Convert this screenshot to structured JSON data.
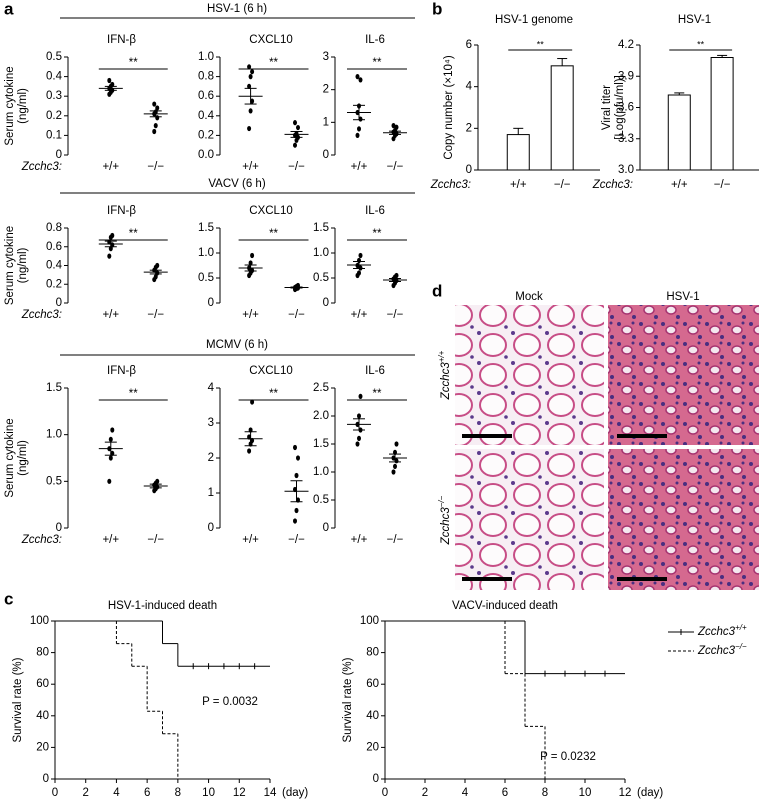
{
  "panel_labels": [
    "a",
    "b",
    "c",
    "d"
  ],
  "groups": [
    {
      "title": "HSV-1 (6 h)"
    },
    {
      "title": "VACV (6 h)"
    },
    {
      "title": "MCMV (6 h)"
    }
  ],
  "images": {
    "columns": [
      "Mock",
      "HSV-1"
    ],
    "rows": [
      {
        "name": "Zcchc3",
        "superscript": "+/+"
      },
      {
        "name": "Zcchc3",
        "superscript": "−/−"
      }
    ]
  },
  "chart_data": [
    {
      "type": "dot",
      "title": "IFN-β",
      "ylabel": [
        "Serum cytokine",
        "(ng/ml)"
      ],
      "xlabel": "Zcchc3:",
      "categories": [
        "+/+",
        "−/−"
      ],
      "annotation": "**",
      "ylim": [
        0,
        0.5
      ],
      "yticks": [
        0,
        0.1,
        0.2,
        0.3,
        0.4,
        0.5
      ],
      "groups": [
        {
          "points": [
            0.31,
            0.32,
            0.33,
            0.34,
            0.35,
            0.36,
            0.38
          ],
          "mean": 0.34,
          "sem": 0.01
        },
        {
          "points": [
            0.12,
            0.15,
            0.19,
            0.21,
            0.22,
            0.24,
            0.26
          ],
          "mean": 0.21,
          "sem": 0.015
        }
      ]
    },
    {
      "type": "dot",
      "title": "CXCL10",
      "categories": [
        "+/+",
        "−/−"
      ],
      "annotation": "**",
      "ylim": [
        0,
        1
      ],
      "yticks": [
        {
          "value": 0,
          "label": "0.0"
        },
        0.2,
        0.4,
        0.6,
        0.8,
        {
          "value": 1,
          "label": "1.0"
        }
      ],
      "groups": [
        {
          "points": [
            0.27,
            0.45,
            0.55,
            0.7,
            0.8,
            0.85,
            0.9
          ],
          "mean": 0.6,
          "sem": 0.08
        },
        {
          "points": [
            0.1,
            0.15,
            0.18,
            0.2,
            0.22,
            0.28,
            0.33
          ],
          "mean": 0.21,
          "sem": 0.03
        }
      ]
    },
    {
      "type": "dot",
      "title": "IL-6",
      "categories": [
        "+/+",
        "−/−"
      ],
      "annotation": "**",
      "ylim": [
        0,
        3
      ],
      "yticks": [
        0,
        1,
        2,
        3
      ],
      "groups": [
        {
          "points": [
            0.6,
            0.8,
            1.1,
            1.3,
            1.5,
            2.3,
            2.4
          ],
          "mean": 1.3,
          "sem": 0.22
        },
        {
          "points": [
            0.5,
            0.6,
            0.65,
            0.7,
            0.75,
            0.85,
            0.9
          ],
          "mean": 0.68,
          "sem": 0.05
        }
      ]
    },
    {
      "type": "dot",
      "title": "IFN-β",
      "ylabel": [
        "Serum cytokine",
        "(ng/ml)"
      ],
      "xlabel": "Zcchc3:",
      "categories": [
        "+/+",
        "−/−"
      ],
      "annotation": "**",
      "ylim": [
        0,
        0.8
      ],
      "yticks": [
        0,
        0.2,
        0.4,
        0.6,
        0.8
      ],
      "groups": [
        {
          "points": [
            0.5,
            0.58,
            0.62,
            0.65,
            0.7,
            0.72
          ],
          "mean": 0.63,
          "sem": 0.03
        },
        {
          "points": [
            0.25,
            0.28,
            0.32,
            0.35,
            0.38,
            0.4
          ],
          "mean": 0.33,
          "sem": 0.02
        }
      ]
    },
    {
      "type": "dot",
      "title": "CXCL10",
      "categories": [
        "+/+",
        "−/−"
      ],
      "annotation": "**",
      "ylim": [
        0,
        1.5
      ],
      "yticks": [
        0,
        0.5,
        {
          "value": 1,
          "label": "1.0"
        },
        1.5
      ],
      "groups": [
        {
          "points": [
            0.55,
            0.6,
            0.65,
            0.7,
            0.8,
            0.95
          ],
          "mean": 0.7,
          "sem": 0.06
        },
        {
          "points": [
            0.27,
            0.29,
            0.3,
            0.31,
            0.33,
            0.35
          ],
          "mean": 0.31,
          "sem": 0.01
        }
      ]
    },
    {
      "type": "dot",
      "title": "IL-6",
      "categories": [
        "+/+",
        "−/−"
      ],
      "annotation": "**",
      "ylim": [
        0,
        1.5
      ],
      "yticks": [
        0,
        0.5,
        {
          "value": 1,
          "label": "1.0"
        },
        1.5
      ],
      "groups": [
        {
          "points": [
            0.55,
            0.6,
            0.7,
            0.75,
            0.85,
            0.95
          ],
          "mean": 0.76,
          "sem": 0.07
        },
        {
          "points": [
            0.35,
            0.4,
            0.45,
            0.48,
            0.52,
            0.55
          ],
          "mean": 0.46,
          "sem": 0.03
        }
      ]
    },
    {
      "type": "dot",
      "title": "IFN-β",
      "ylabel": [
        "Serum cytokine",
        "(ng/ml)"
      ],
      "xlabel": "Zcchc3:",
      "categories": [
        "+/+",
        "−/−"
      ],
      "annotation": "**",
      "ylim": [
        0,
        1.5
      ],
      "yticks": [
        0,
        0.5,
        {
          "value": 1,
          "label": "1.0"
        },
        1.5
      ],
      "groups": [
        {
          "points": [
            0.5,
            0.75,
            0.8,
            0.85,
            0.95,
            1.05
          ],
          "mean": 0.85,
          "sem": 0.07
        },
        {
          "points": [
            0.4,
            0.42,
            0.44,
            0.46,
            0.48,
            0.5
          ],
          "mean": 0.45,
          "sem": 0.02
        }
      ]
    },
    {
      "type": "dot",
      "title": "CXCL10",
      "categories": [
        "+/+",
        "−/−"
      ],
      "annotation": "**",
      "ylim": [
        0,
        4
      ],
      "yticks": [
        0,
        1,
        2,
        3,
        4
      ],
      "groups": [
        {
          "points": [
            2.2,
            2.4,
            2.5,
            2.6,
            2.8,
            3.6
          ],
          "mean": 2.55,
          "sem": 0.2
        },
        {
          "points": [
            0.2,
            0.5,
            0.8,
            1.1,
            1.5,
            2.0,
            2.3
          ],
          "mean": 1.05,
          "sem": 0.3
        }
      ]
    },
    {
      "type": "dot",
      "title": "IL-6",
      "categories": [
        "+/+",
        "−/−"
      ],
      "annotation": "**",
      "ylim": [
        0,
        2.5
      ],
      "yticks": [
        0,
        0.5,
        {
          "value": 1,
          "label": "1.0"
        },
        1.5,
        {
          "value": 2,
          "label": "2.0"
        },
        2.5
      ],
      "groups": [
        {
          "points": [
            1.5,
            1.6,
            1.75,
            1.85,
            2.0,
            2.35
          ],
          "mean": 1.85,
          "sem": 0.1
        },
        {
          "points": [
            1.0,
            1.1,
            1.2,
            1.25,
            1.35,
            1.5
          ],
          "mean": 1.25,
          "sem": 0.07
        }
      ]
    },
    {
      "type": "bar",
      "title": "HSV-1 genome",
      "ylabel": [
        "Copy number (×10⁴)"
      ],
      "xlabel": "Zcchc3:",
      "categories": [
        "+/+",
        "−/−"
      ],
      "annotation": "**",
      "values": [
        1.7,
        5.0
      ],
      "errors": [
        0.3,
        0.35
      ],
      "color": "#ffffff",
      "ylim": [
        0,
        6
      ],
      "yticks": [
        0,
        2,
        4,
        6
      ]
    },
    {
      "type": "bar",
      "title": "HSV-1",
      "ylabel": [
        "Viral titer",
        "[Log(pfu/ml)]"
      ],
      "xlabel": "Zcchc3:",
      "categories": [
        "+/+",
        "−/−"
      ],
      "annotation": "**",
      "values": [
        3.72,
        4.08
      ],
      "errors": [
        0.02,
        0.02
      ],
      "color": "#ffffff",
      "ylim": [
        3,
        4.2
      ],
      "yticks": [
        {
          "value": 3,
          "label": "3.0"
        },
        3.3,
        3.6,
        3.9,
        4.2
      ]
    },
    {
      "type": "survival",
      "title": "HSV-1-induced death",
      "ylabel": [
        "Survival rate (%)"
      ],
      "xunit": "(day)",
      "annotation": "P = 0.0032",
      "xlim": [
        0,
        14
      ],
      "xticks": [
        0,
        2,
        4,
        6,
        8,
        10,
        12,
        14
      ],
      "ylim": [
        0,
        100
      ],
      "yticks": [
        0,
        20,
        40,
        60,
        80,
        100
      ],
      "series": [
        {
          "name": "Zcchc3",
          "superscript": "+/+",
          "color": "#000000",
          "dashed": false,
          "x": [
            0,
            7,
            8,
            14
          ],
          "values": [
            100,
            85.7,
            71.4,
            71.4
          ],
          "censored": [
            9,
            10,
            11,
            12,
            13
          ]
        },
        {
          "name": "Zcchc3",
          "superscript": "−/−",
          "color": "#000000",
          "dashed": true,
          "x": [
            0,
            4,
            5,
            6,
            7,
            8
          ],
          "values": [
            100,
            85.7,
            71.4,
            42.9,
            28.6,
            0
          ],
          "censored": []
        }
      ]
    },
    {
      "type": "survival",
      "title": "VACV-induced death",
      "ylabel": [
        "Survival rate (%)"
      ],
      "xunit": "(day)",
      "annotation": "P = 0.0232",
      "legend": "upper right",
      "xlim": [
        0,
        12
      ],
      "xticks": [
        0,
        2,
        4,
        6,
        8,
        10,
        12
      ],
      "ylim": [
        0,
        100
      ],
      "yticks": [
        0,
        20,
        40,
        60,
        80,
        100
      ],
      "series": [
        {
          "name": "Zcchc3",
          "superscript": "+/+",
          "color": "#000000",
          "dashed": false,
          "x": [
            0,
            7,
            12
          ],
          "values": [
            100,
            66.7,
            66.7
          ],
          "censored": [
            8,
            9,
            10,
            11
          ]
        },
        {
          "name": "Zcchc3",
          "superscript": "−/−",
          "color": "#000000",
          "dashed": true,
          "x": [
            0,
            6,
            7,
            8
          ],
          "values": [
            100,
            66.7,
            33.3,
            0
          ],
          "censored": []
        }
      ]
    }
  ]
}
